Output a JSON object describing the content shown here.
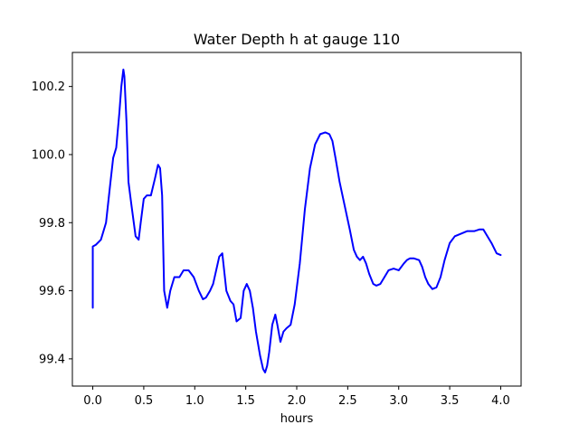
{
  "chart_data": {
    "type": "line",
    "title": "Water Depth h at gauge 110",
    "xlabel": "hours",
    "ylabel": "",
    "xlim": [
      -0.2,
      4.2
    ],
    "ylim": [
      99.32,
      100.3
    ],
    "xticks": [
      0.0,
      0.5,
      1.0,
      1.5,
      2.0,
      2.5,
      3.0,
      3.5,
      4.0
    ],
    "xtick_labels": [
      "0.0",
      "0.5",
      "1.0",
      "1.5",
      "2.0",
      "2.5",
      "3.0",
      "3.5",
      "4.0"
    ],
    "yticks": [
      99.4,
      99.6,
      99.8,
      100.0,
      100.2
    ],
    "ytick_labels": [
      "99.4",
      "99.6",
      "99.8",
      "100.0",
      "100.2"
    ],
    "grid": false,
    "series": [
      {
        "color": "#0000ff",
        "x": [
          0.0,
          0.0,
          0.03,
          0.08,
          0.13,
          0.17,
          0.2,
          0.23,
          0.26,
          0.28,
          0.3,
          0.31,
          0.33,
          0.35,
          0.38,
          0.42,
          0.45,
          0.47,
          0.5,
          0.53,
          0.57,
          0.61,
          0.64,
          0.66,
          0.68,
          0.7,
          0.73,
          0.76,
          0.8,
          0.85,
          0.89,
          0.94,
          0.99,
          1.04,
          1.08,
          1.11,
          1.15,
          1.18,
          1.21,
          1.24,
          1.27,
          1.31,
          1.35,
          1.38,
          1.41,
          1.45,
          1.48,
          1.51,
          1.54,
          1.57,
          1.6,
          1.64,
          1.67,
          1.69,
          1.71,
          1.73,
          1.76,
          1.79,
          1.81,
          1.84,
          1.87,
          1.9,
          1.94,
          1.98,
          2.03,
          2.08,
          2.13,
          2.18,
          2.23,
          2.28,
          2.32,
          2.35,
          2.38,
          2.42,
          2.47,
          2.52,
          2.56,
          2.59,
          2.62,
          2.65,
          2.68,
          2.71,
          2.75,
          2.78,
          2.82,
          2.86,
          2.9,
          2.95,
          3.0,
          3.05,
          3.08,
          3.11,
          3.15,
          3.2,
          3.23,
          3.26,
          3.29,
          3.33,
          3.37,
          3.41,
          3.45,
          3.5,
          3.55,
          3.59,
          3.63,
          3.67,
          3.7,
          3.74,
          3.79,
          3.83,
          3.87,
          3.91,
          3.96,
          4.0
        ],
        "y": [
          99.55,
          99.73,
          99.735,
          99.75,
          99.8,
          99.91,
          99.99,
          100.02,
          100.12,
          100.2,
          100.25,
          100.23,
          100.1,
          99.92,
          99.85,
          99.76,
          99.75,
          99.8,
          99.87,
          99.88,
          99.88,
          99.93,
          99.97,
          99.96,
          99.88,
          99.6,
          99.55,
          99.6,
          99.64,
          99.64,
          99.66,
          99.66,
          99.64,
          99.6,
          99.575,
          99.58,
          99.6,
          99.62,
          99.66,
          99.7,
          99.71,
          99.6,
          99.57,
          99.56,
          99.51,
          99.52,
          99.6,
          99.62,
          99.6,
          99.55,
          99.48,
          99.41,
          99.37,
          99.36,
          99.38,
          99.42,
          99.5,
          99.53,
          99.5,
          99.45,
          99.48,
          99.49,
          99.5,
          99.56,
          99.68,
          99.84,
          99.96,
          100.03,
          100.06,
          100.065,
          100.06,
          100.04,
          99.99,
          99.92,
          99.85,
          99.78,
          99.72,
          99.7,
          99.69,
          99.7,
          99.68,
          99.65,
          99.62,
          99.615,
          99.62,
          99.64,
          99.66,
          99.665,
          99.66,
          99.68,
          99.69,
          99.695,
          99.695,
          99.69,
          99.67,
          99.64,
          99.62,
          99.605,
          99.61,
          99.64,
          99.69,
          99.74,
          99.76,
          99.765,
          99.77,
          99.775,
          99.775,
          99.775,
          99.78,
          99.78,
          99.76,
          99.74,
          99.71,
          99.705
        ]
      }
    ]
  }
}
